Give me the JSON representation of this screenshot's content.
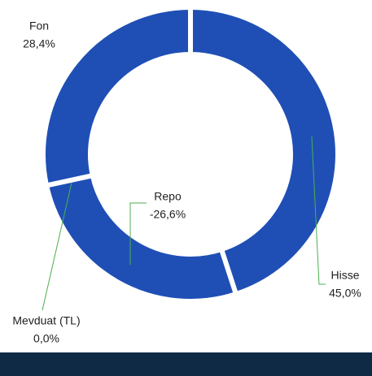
{
  "chart_data": {
    "type": "donut",
    "categories": [
      "Hisse",
      "Repo",
      "Mevduat (TL)",
      "Fon"
    ],
    "values": [
      45.0,
      -26.6,
      0.0,
      28.4
    ],
    "value_labels": [
      "45,0%",
      "-26,6%",
      "0,0%",
      "28,4%"
    ],
    "color": "#1f4fb5"
  }
}
